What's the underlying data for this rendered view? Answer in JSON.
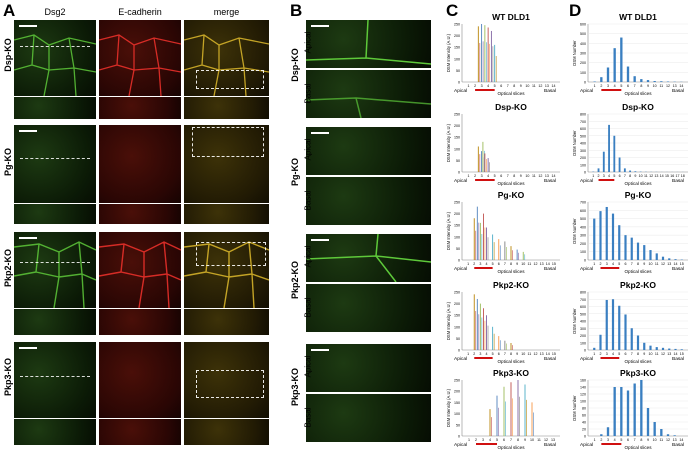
{
  "panels": {
    "a": "A",
    "b": "B",
    "c": "C",
    "d": "D"
  },
  "col_headers": [
    "Dsg2",
    "E-cadherin",
    "merge"
  ],
  "rows": [
    "Dsp-KO",
    "Pg-KO",
    "Pkp2-KO",
    "Pkp3-KO"
  ],
  "b_sub": {
    "apical": "Apical",
    "basal": "Basal"
  },
  "axis_text": {
    "c_ylabel": "DSM Intensity (A.U.)",
    "d_ylabel": "DSM Number",
    "xlabel": "Optical slices",
    "apical": "Apical",
    "basal": "Basal"
  },
  "colors": {
    "red_bar": "#d01010",
    "bar_blue": "#3a7fc1"
  },
  "chart_data": [
    {
      "panel": "C",
      "type": "line",
      "title": "WT DLD1",
      "ylim": [
        0,
        250
      ],
      "yticks": [
        0,
        50,
        100,
        150,
        200,
        250
      ],
      "x": [
        1,
        2,
        3,
        4,
        5,
        6,
        7,
        8,
        9,
        10,
        11,
        12,
        13,
        14
      ],
      "series_peaks": [
        {
          "x": 2.5,
          "y": 240
        },
        {
          "x": 3,
          "y": 250
        },
        {
          "x": 3.5,
          "y": 245
        },
        {
          "x": 4,
          "y": 235
        },
        {
          "x": 4.5,
          "y": 220
        },
        {
          "x": 5,
          "y": 160
        }
      ],
      "red_range": [
        2,
        5
      ]
    },
    {
      "panel": "C",
      "type": "line",
      "title": "Dsp-KO",
      "ylim": [
        0,
        250
      ],
      "yticks": [
        0,
        50,
        100,
        150,
        200,
        250
      ],
      "x": [
        1,
        2,
        3,
        4,
        5,
        6,
        7,
        8,
        9,
        10,
        11,
        12,
        13,
        14
      ],
      "series_peaks": [
        {
          "x": 2.5,
          "y": 110
        },
        {
          "x": 3,
          "y": 90
        },
        {
          "x": 3.2,
          "y": 130
        },
        {
          "x": 3.5,
          "y": 80
        },
        {
          "x": 4,
          "y": 60
        }
      ],
      "red_range": [
        2,
        5
      ]
    },
    {
      "panel": "C",
      "type": "line",
      "title": "Pg-KO",
      "ylim": [
        0,
        250
      ],
      "yticks": [
        0,
        50,
        100,
        150,
        200,
        250
      ],
      "x": [
        1,
        2,
        3,
        4,
        5,
        6,
        7,
        8,
        9,
        10,
        11,
        12,
        13,
        14,
        15
      ],
      "series_peaks": [
        {
          "x": 2,
          "y": 180
        },
        {
          "x": 2.5,
          "y": 230
        },
        {
          "x": 3,
          "y": 160
        },
        {
          "x": 3.5,
          "y": 200
        },
        {
          "x": 4,
          "y": 140
        },
        {
          "x": 5,
          "y": 110
        },
        {
          "x": 6,
          "y": 90
        },
        {
          "x": 7,
          "y": 80
        },
        {
          "x": 8,
          "y": 60
        },
        {
          "x": 9,
          "y": 45
        },
        {
          "x": 10,
          "y": 35
        }
      ],
      "red_range": [
        2,
        5
      ]
    },
    {
      "panel": "C",
      "type": "line",
      "title": "Pkp2-KO",
      "ylim": [
        0,
        250
      ],
      "yticks": [
        0,
        50,
        100,
        150,
        200,
        250
      ],
      "x": [
        1,
        2,
        3,
        4,
        5,
        6,
        7,
        8,
        9,
        10,
        11,
        12,
        13,
        14,
        15
      ],
      "series_peaks": [
        {
          "x": 2,
          "y": 240
        },
        {
          "x": 2.5,
          "y": 220
        },
        {
          "x": 3,
          "y": 200
        },
        {
          "x": 3.5,
          "y": 180
        },
        {
          "x": 4,
          "y": 150
        },
        {
          "x": 5,
          "y": 100
        },
        {
          "x": 6,
          "y": 60
        },
        {
          "x": 7,
          "y": 40
        },
        {
          "x": 8,
          "y": 30
        }
      ],
      "red_range": [
        2,
        5
      ]
    },
    {
      "panel": "C",
      "type": "line",
      "title": "Pkp3-KO",
      "ylim": [
        0,
        250
      ],
      "yticks": [
        0,
        50,
        100,
        150,
        200,
        250
      ],
      "x": [
        1,
        2,
        3,
        4,
        5,
        6,
        7,
        8,
        9,
        10,
        11,
        12,
        13
      ],
      "series_peaks": [
        {
          "x": 4,
          "y": 120
        },
        {
          "x": 5,
          "y": 180
        },
        {
          "x": 6,
          "y": 220
        },
        {
          "x": 7,
          "y": 240
        },
        {
          "x": 8,
          "y": 250
        },
        {
          "x": 9,
          "y": 230
        },
        {
          "x": 10,
          "y": 150
        }
      ],
      "red_range": [
        2,
        5
      ]
    },
    {
      "panel": "D",
      "type": "bar",
      "title": "WT DLD1",
      "ylim": [
        0,
        600
      ],
      "yticks": [
        0,
        100,
        200,
        300,
        400,
        500,
        600
      ],
      "categories": [
        1,
        2,
        3,
        4,
        5,
        6,
        7,
        8,
        9,
        10,
        11,
        12,
        13,
        14
      ],
      "values": [
        5,
        50,
        150,
        350,
        460,
        160,
        60,
        30,
        20,
        10,
        8,
        5,
        3,
        2
      ],
      "red_range": [
        2,
        5
      ]
    },
    {
      "panel": "D",
      "type": "bar",
      "title": "Dsp-KO",
      "ylim": [
        0,
        800
      ],
      "yticks": [
        0,
        100,
        200,
        300,
        400,
        500,
        600,
        700,
        800
      ],
      "categories": [
        1,
        2,
        3,
        4,
        5,
        6,
        7,
        8,
        9,
        10,
        11,
        12,
        13,
        14,
        15,
        16,
        17,
        18
      ],
      "values": [
        5,
        50,
        280,
        650,
        500,
        200,
        50,
        20,
        10,
        5,
        3,
        2,
        2,
        1,
        1,
        1,
        1,
        1
      ],
      "red_range": [
        2,
        5
      ]
    },
    {
      "panel": "D",
      "type": "bar",
      "title": "Pg-KO",
      "ylim": [
        0,
        700
      ],
      "yticks": [
        0,
        100,
        200,
        300,
        400,
        500,
        600,
        700
      ],
      "categories": [
        1,
        2,
        3,
        4,
        5,
        6,
        7,
        8,
        9,
        10,
        11,
        12,
        13,
        14,
        15
      ],
      "values": [
        500,
        590,
        640,
        560,
        420,
        300,
        270,
        210,
        180,
        120,
        80,
        40,
        20,
        10,
        5
      ],
      "red_range": [
        2,
        5
      ]
    },
    {
      "panel": "D",
      "type": "bar",
      "title": "Pkp2-KO",
      "ylim": [
        0,
        800
      ],
      "yticks": [
        0,
        100,
        200,
        300,
        400,
        500,
        600,
        700,
        800
      ],
      "categories": [
        1,
        2,
        3,
        4,
        5,
        6,
        7,
        8,
        9,
        10,
        11,
        12,
        13,
        14,
        15
      ],
      "values": [
        30,
        210,
        690,
        700,
        610,
        490,
        300,
        200,
        100,
        60,
        40,
        30,
        20,
        15,
        10
      ],
      "red_range": [
        2,
        5
      ]
    },
    {
      "panel": "D",
      "type": "bar",
      "title": "Pkp3-KO",
      "ylim": [
        0,
        160
      ],
      "yticks": [
        0,
        20,
        40,
        60,
        80,
        100,
        120,
        140,
        160
      ],
      "categories": [
        1,
        2,
        3,
        4,
        5,
        6,
        7,
        8,
        9,
        10,
        11,
        12,
        13,
        14
      ],
      "values": [
        0,
        5,
        25,
        140,
        140,
        130,
        150,
        160,
        80,
        40,
        20,
        5,
        2,
        0
      ],
      "red_range": [
        2,
        5
      ]
    }
  ]
}
